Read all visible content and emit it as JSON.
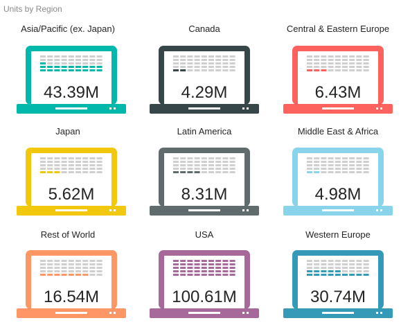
{
  "title": "Units by Region",
  "chart_data": {
    "type": "pictograph",
    "title": "Units by Region",
    "max_value": 100.61,
    "categories": [
      "Asia/Pacific (ex. Japan)",
      "Canada",
      "Central & Eastern Europe",
      "Japan",
      "Latin America",
      "Middle East & Africa",
      "Rest of World",
      "USA",
      "Western Europe"
    ],
    "values": [
      43.39,
      4.29,
      6.43,
      5.62,
      8.31,
      4.98,
      16.54,
      100.61,
      30.74
    ],
    "value_labels": [
      "43.39M",
      "4.29M",
      "6.43M",
      "5.62M",
      "8.31M",
      "4.98M",
      "16.54M",
      "100.61M",
      "30.74M"
    ],
    "colors": [
      "#01b8aa",
      "#374649",
      "#fd625e",
      "#f2c80f",
      "#5f6b6d",
      "#8ad4eb",
      "#fe9666",
      "#a66999",
      "#3599b8"
    ]
  }
}
